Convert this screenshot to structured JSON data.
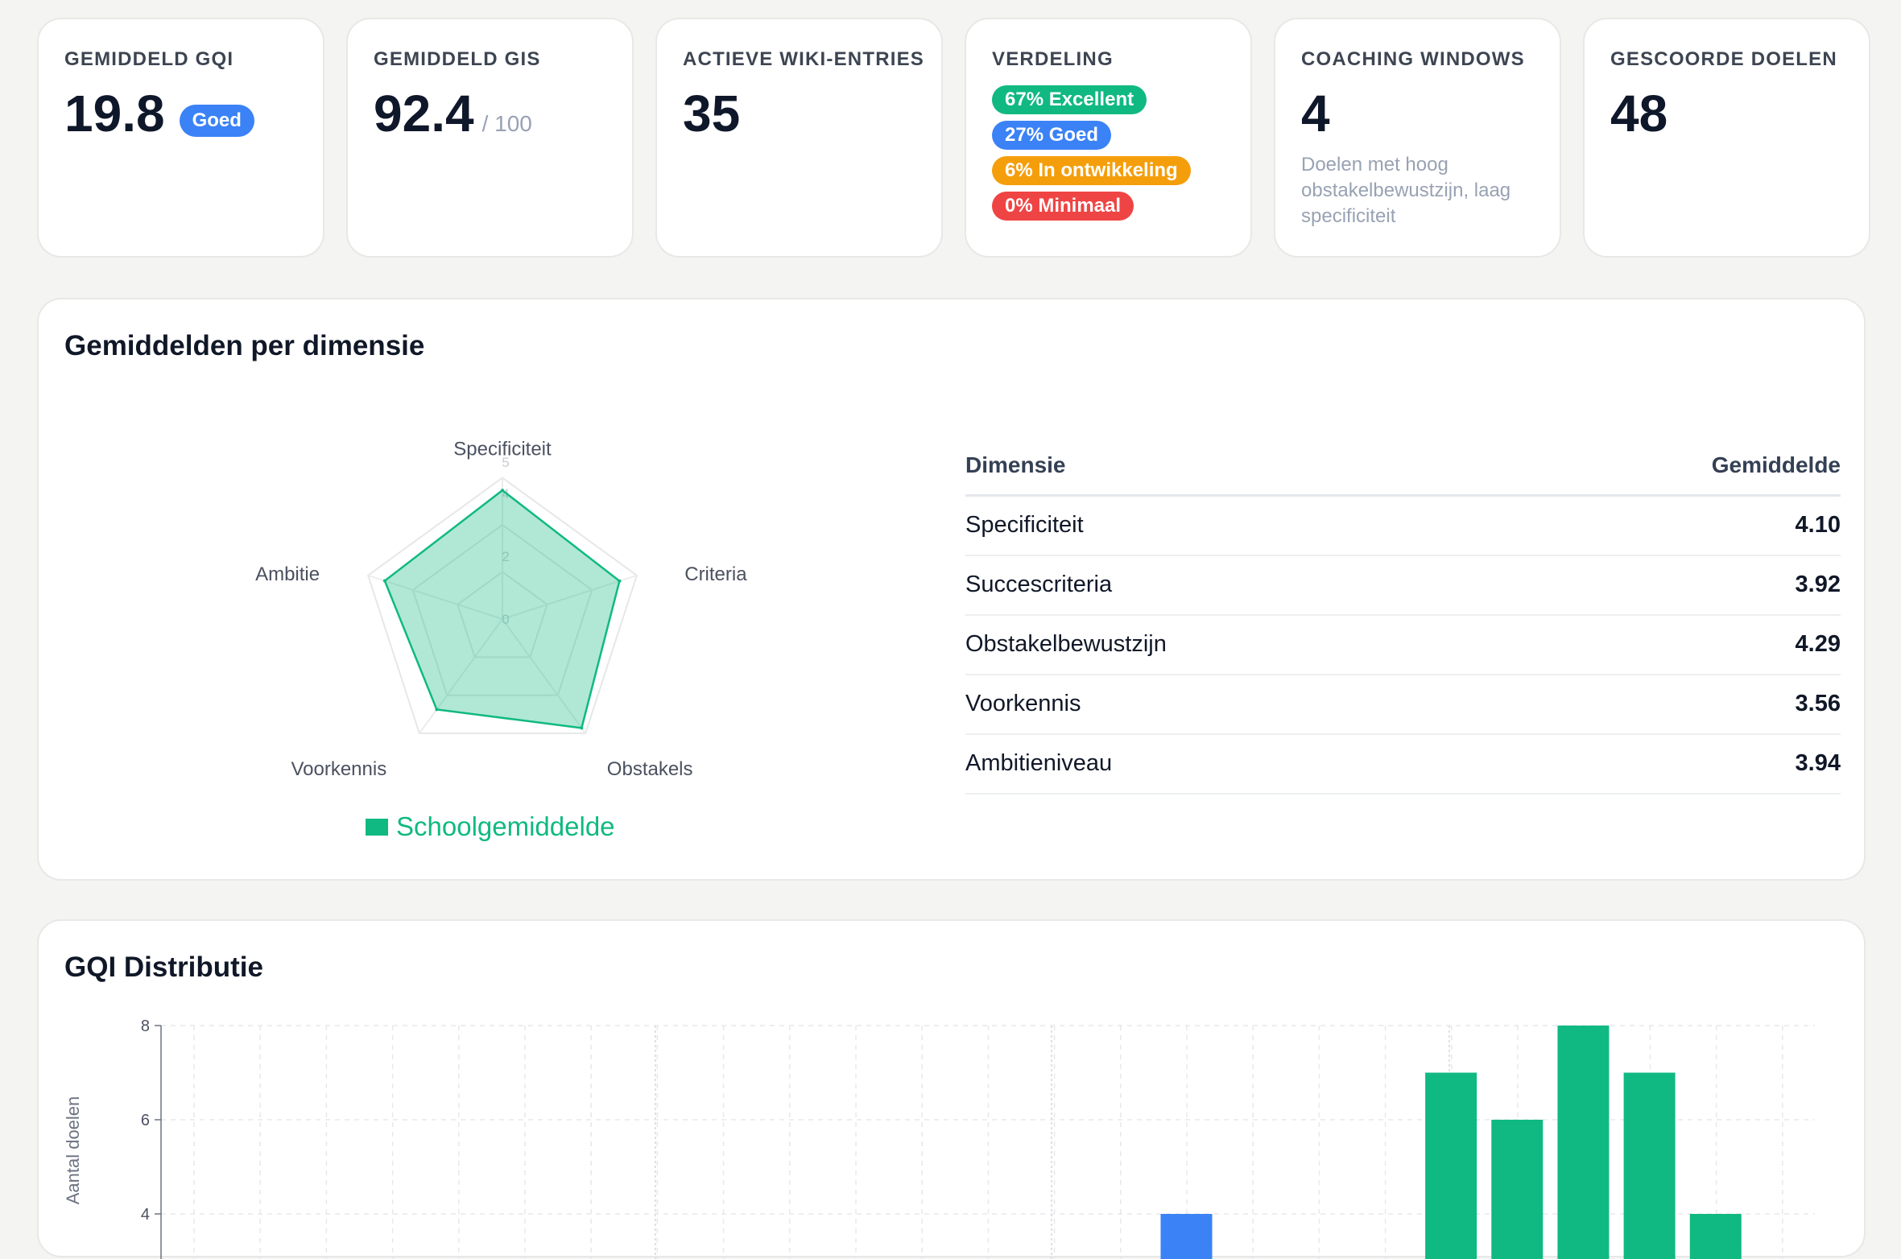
{
  "stats": [
    {
      "label": "GEMIDDELD GQI",
      "value": "19.8",
      "badge": "Goed"
    },
    {
      "label": "GEMIDDELD GIS",
      "value": "92.4",
      "suffix": "/ 100"
    },
    {
      "label": "ACTIEVE WIKI-ENTRIES",
      "value": "35"
    },
    {
      "label": "VERDELING",
      "badges": [
        {
          "text": "67% Excellent",
          "color": "#10b981"
        },
        {
          "text": "27% Goed",
          "color": "#3b82f6"
        },
        {
          "text": "6% In ontwikkeling",
          "color": "#f59e0b"
        },
        {
          "text": "0% Minimaal",
          "color": "#ef4444"
        }
      ]
    },
    {
      "label": "COACHING WINDOWS",
      "value": "4",
      "note": "Doelen met hoog obstakelbewustzijn, laag specificiteit"
    },
    {
      "label": "GESCOORDE DOELEN",
      "value": "48"
    }
  ],
  "radar_panel": {
    "title": "Gemiddelden per dimensie",
    "legend": "Schoolgemiddelde",
    "axes": [
      "Specificiteit",
      "Criteria",
      "Obstakels",
      "Voorkennis",
      "Ambitie"
    ],
    "table": {
      "headers": [
        "Dimensie",
        "Gemiddelde"
      ],
      "rows": [
        [
          "Specificiteit",
          "4.10"
        ],
        [
          "Succescriteria",
          "3.92"
        ],
        [
          "Obstakelbewustzijn",
          "4.29"
        ],
        [
          "Voorkennis",
          "3.56"
        ],
        [
          "Ambitieniveau",
          "3.94"
        ]
      ]
    }
  },
  "dist_panel": {
    "title": "GQI Distributie"
  },
  "chart_data": [
    {
      "type": "radar",
      "axes": [
        "Specificiteit",
        "Criteria",
        "Obstakels",
        "Voorkennis",
        "Ambitie"
      ],
      "range": [
        0,
        5
      ],
      "ticks": [
        "0",
        "2",
        "4",
        "5"
      ],
      "grid": true,
      "legend": "bottom",
      "series": [
        {
          "name": "Schoolgemiddelde",
          "values": [
            4.1,
            3.92,
            4.29,
            3.56,
            3.94
          ],
          "color": "#10b981"
        }
      ]
    },
    {
      "type": "bar",
      "title": "GQI Distributie",
      "ylabel": "Aantal doelen",
      "ylim": [
        0,
        8
      ],
      "yticks": [
        4,
        6,
        8
      ],
      "grid": true,
      "bars": [
        {
          "x": 15.5,
          "value": 4,
          "color": "#3b82f6"
        },
        {
          "x": 19.5,
          "value": 7,
          "color": "#10b981"
        },
        {
          "x": 20.5,
          "value": 6,
          "color": "#10b981"
        },
        {
          "x": 21.5,
          "value": 8,
          "color": "#10b981"
        },
        {
          "x": 22.5,
          "value": 7,
          "color": "#10b981"
        },
        {
          "x": 23.5,
          "value": 4,
          "color": "#10b981"
        }
      ],
      "xlim": [
        0,
        25
      ]
    }
  ]
}
